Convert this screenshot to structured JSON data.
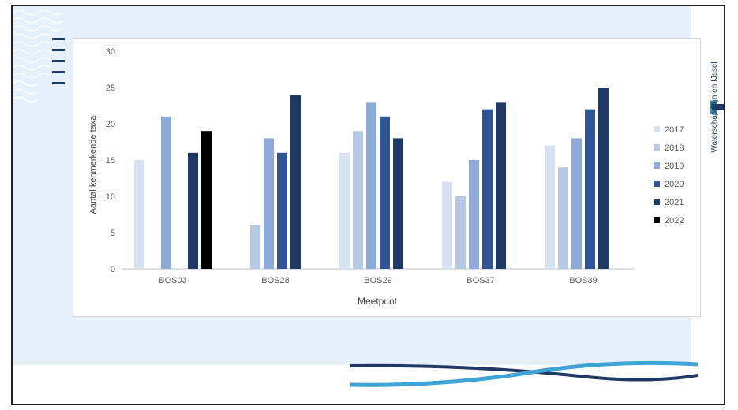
{
  "logo": {
    "name": "Waterschap Rijn en IJssel",
    "icon": "waterboard-logo-icon"
  },
  "chart_data": {
    "type": "bar",
    "title": "",
    "xlabel": "Meetpunt",
    "ylabel": "Aantal kenmerkende taxa",
    "ylim": [
      0,
      30
    ],
    "yticks": [
      0,
      5,
      10,
      15,
      20,
      25,
      30
    ],
    "legend_position": "right",
    "grid": false,
    "categories": [
      "BOS03",
      "BOS28",
      "BOS29",
      "BOS37",
      "BOS39"
    ],
    "series": [
      {
        "name": "2017",
        "color": "#d6e2f2",
        "values": [
          15,
          null,
          16,
          12,
          17
        ]
      },
      {
        "name": "2018",
        "color": "#b5c9e6",
        "values": [
          null,
          6,
          19,
          10,
          14
        ]
      },
      {
        "name": "2019",
        "color": "#8faad8",
        "values": [
          21,
          18,
          23,
          15,
          18
        ]
      },
      {
        "name": "2020",
        "color": "#2f5597",
        "values": [
          null,
          16,
          21,
          22,
          22
        ]
      },
      {
        "name": "2021",
        "color": "#1f3864",
        "values": [
          16,
          24,
          18,
          23,
          25
        ]
      },
      {
        "name": "2022",
        "color": "#000000",
        "values": [
          19,
          null,
          null,
          null,
          null
        ]
      }
    ]
  }
}
